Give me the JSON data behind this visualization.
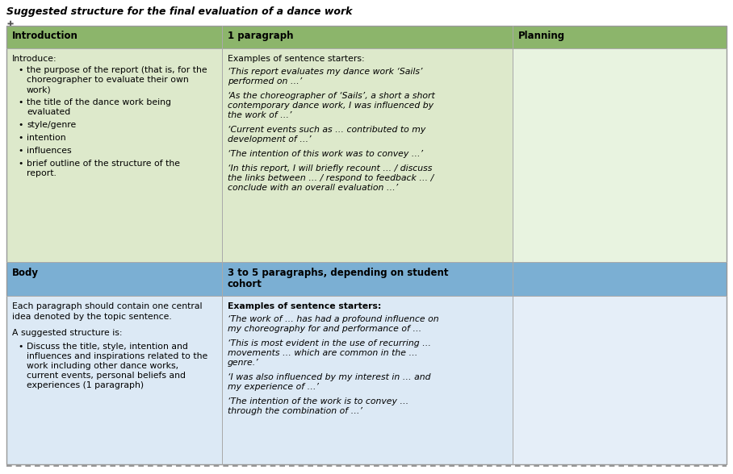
{
  "title": "Suggested structure for the final evaluation of a dance work",
  "fig_w": 9.08,
  "fig_h": 5.88,
  "dpi": 100,
  "header_bg": "#8cb56b",
  "header2_bg": "#7bafd3",
  "body_bg_green": "#dde9cb",
  "body_bg_blue": "#dce9f5",
  "planning_bg_green": "#e8f3e0",
  "planning_bg_blue": "#e5eef8",
  "border_color": "#aaaaaa",
  "title_text": "Suggested structure for the final evaluation of a dance work",
  "col1_header": "Introduction",
  "col2_header": "1 paragraph",
  "col3_header": "Planning",
  "col1_header2": "Body",
  "col2_header2": "3 to 5 paragraphs, depending on student\ncohort",
  "col1_intro_line1": "Introduce:",
  "col1_intro_bullets": [
    "the purpose of the report (that is, for the\nchoreographer to evaluate their own\nwork)",
    "the title of the dance work being\nevaluated",
    "style/genre",
    "intention",
    "influences",
    "brief outline of the structure of the\nreport."
  ],
  "col2_intro_header": "Examples of sentence starters:",
  "col2_intro_items": [
    "‘This report evaluates my dance work ‘Sails’\nperformed on …’",
    "‘As the choreographer of ‘Sails’, a short a short\ncontemporary dance work, I was influenced by\nthe work of …’",
    "‘Current events such as … contributed to my\ndevelopment of …’",
    "‘The intention of this work was to convey …’",
    "‘In this report, I will briefly recount … / discuss\nthe links between … / respond to feedback … /\nconclude with an overall evaluation …’"
  ],
  "col1_body_text": "Each paragraph should contain one central\nidea denoted by the topic sentence.\n\nA suggested structure is:",
  "col1_body_bullets": [
    "Discuss the title, style, intention and\ninfluences and inspirations related to the\nwork including other dance works,\ncurrent events, personal beliefs and\nexperiences (1 paragraph)"
  ],
  "col2_body_header": "Examples of sentence starters:",
  "col2_body_items": [
    "‘The work of … has had a profound influence on\nmy choreography for and performance of …",
    "‘This is most evident in the use of recurring …\nmovements … which are common in the …\ngenre.’",
    "‘I was also influenced by my interest in … and\nmy experience of …’",
    "‘The intention of the work is to convey …\nthrough the combination of …’"
  ]
}
